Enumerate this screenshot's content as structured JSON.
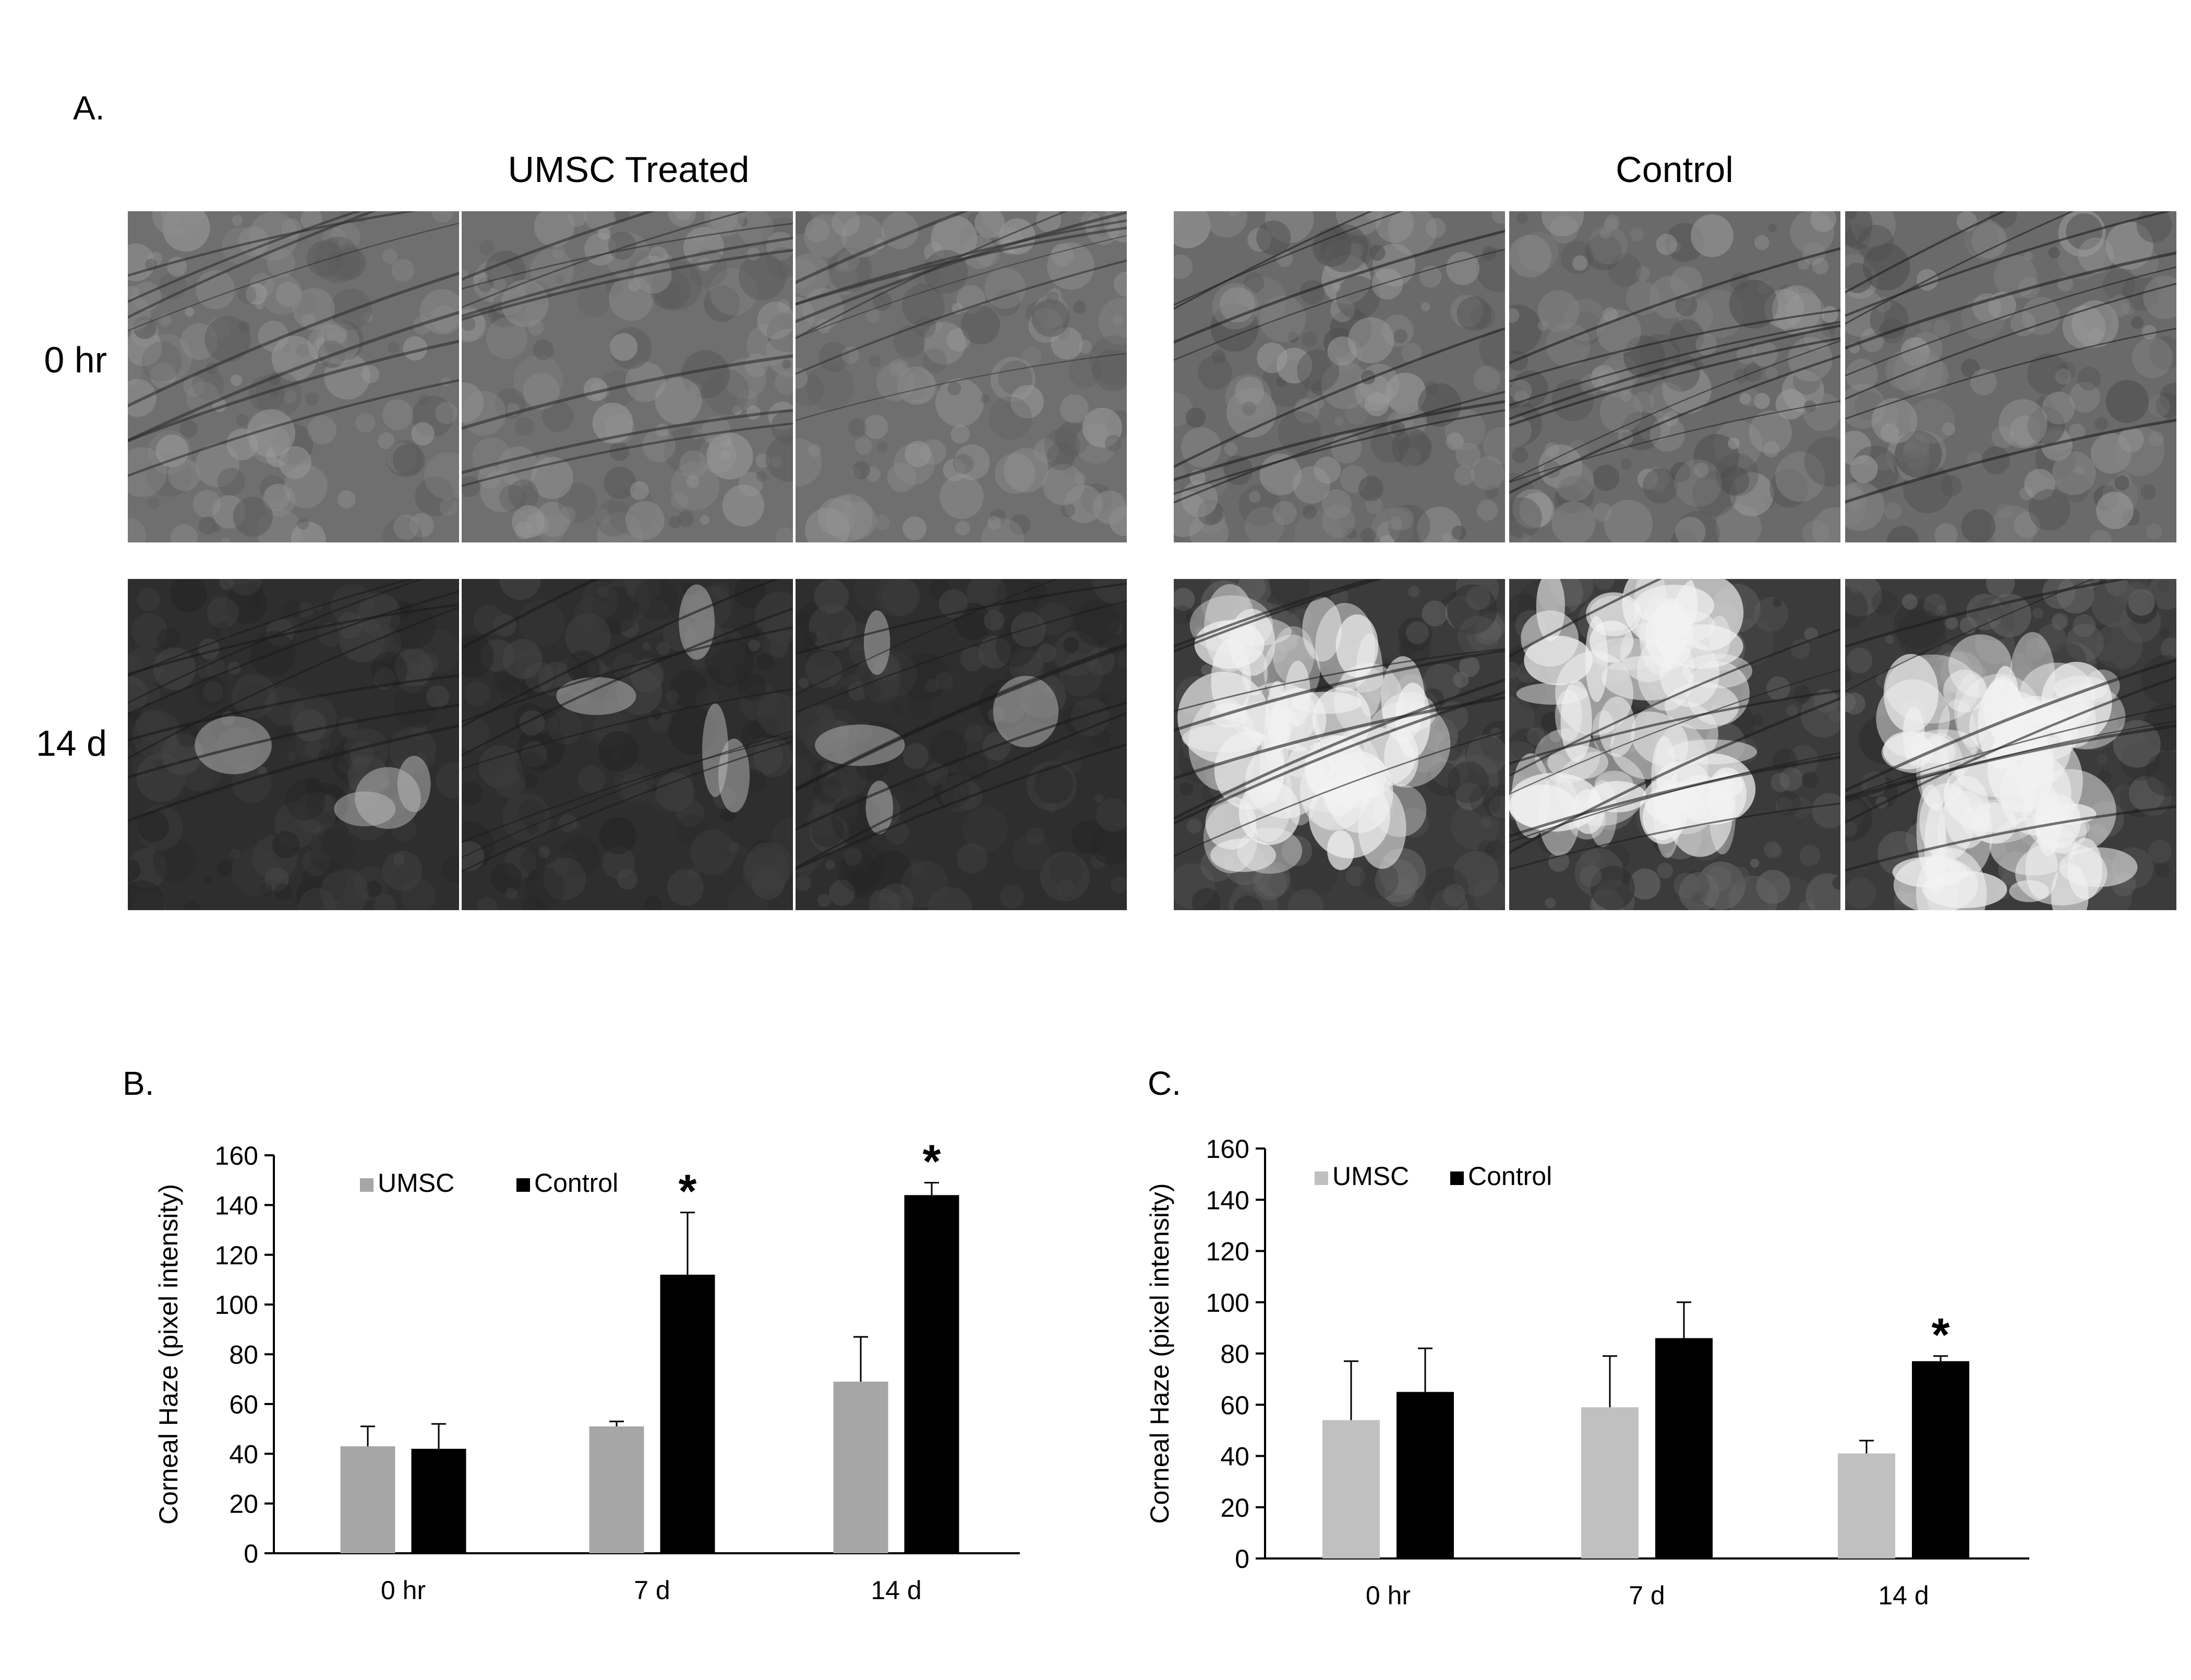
{
  "panel_a": {
    "label": "A.",
    "groups": [
      {
        "title": "UMSC Treated"
      },
      {
        "title": "Control"
      }
    ],
    "rows": [
      {
        "label": "0 hr"
      },
      {
        "label": "14 d"
      }
    ],
    "image_tiles": [
      {
        "group": "UMSC Treated",
        "row": "0 hr",
        "tone": "medium-gray-speckled"
      },
      {
        "group": "UMSC Treated",
        "row": "0 hr",
        "tone": "medium-gray-speckled"
      },
      {
        "group": "UMSC Treated",
        "row": "0 hr",
        "tone": "medium-gray-speckled"
      },
      {
        "group": "Control",
        "row": "0 hr",
        "tone": "gray-textured"
      },
      {
        "group": "Control",
        "row": "0 hr",
        "tone": "gray-textured"
      },
      {
        "group": "Control",
        "row": "0 hr",
        "tone": "gray-textured"
      },
      {
        "group": "UMSC Treated",
        "row": "14 d",
        "tone": "dark"
      },
      {
        "group": "UMSC Treated",
        "row": "14 d",
        "tone": "dark"
      },
      {
        "group": "UMSC Treated",
        "row": "14 d",
        "tone": "dark"
      },
      {
        "group": "Control",
        "row": "14 d",
        "tone": "bright-haze"
      },
      {
        "group": "Control",
        "row": "14 d",
        "tone": "bright-haze"
      },
      {
        "group": "Control",
        "row": "14 d",
        "tone": "bright-haze"
      }
    ]
  },
  "chart_data": [
    {
      "panel_label": "B.",
      "type": "bar",
      "categories": [
        "0 hr",
        "7 d",
        "14 d"
      ],
      "series": [
        {
          "name": "UMSC",
          "color": "#a6a6a6",
          "values": [
            43,
            51,
            69
          ],
          "errors": [
            8,
            2,
            18
          ]
        },
        {
          "name": "Control",
          "color": "#000000",
          "values": [
            42,
            112,
            144
          ],
          "errors": [
            10,
            25,
            5
          ]
        }
      ],
      "significance": [
        "",
        "*",
        "*"
      ],
      "ylabel": "Corneal Haze (pixel intensity)",
      "ylim": [
        0,
        160
      ],
      "yticks": [
        "0",
        "20",
        "40",
        "60",
        "80",
        "100",
        "120",
        "140",
        "160"
      ],
      "legend_position": "top-left",
      "grid": false
    },
    {
      "panel_label": "C.",
      "type": "bar",
      "categories": [
        "0 hr",
        "7 d",
        "14 d"
      ],
      "series": [
        {
          "name": "UMSC",
          "color": "#c0c0c0",
          "values": [
            54,
            59,
            41
          ],
          "errors": [
            23,
            20,
            5
          ]
        },
        {
          "name": "Control",
          "color": "#000000",
          "values": [
            65,
            86,
            77
          ],
          "errors": [
            17,
            14,
            2
          ]
        }
      ],
      "significance": [
        "",
        "",
        "*"
      ],
      "ylabel": "Corneal Haze (pixel intensity)",
      "ylim": [
        0,
        160
      ],
      "yticks": [
        "0",
        "20",
        "40",
        "60",
        "80",
        "100",
        "120",
        "140",
        "160"
      ],
      "legend_position": "top-left",
      "grid": false
    }
  ]
}
